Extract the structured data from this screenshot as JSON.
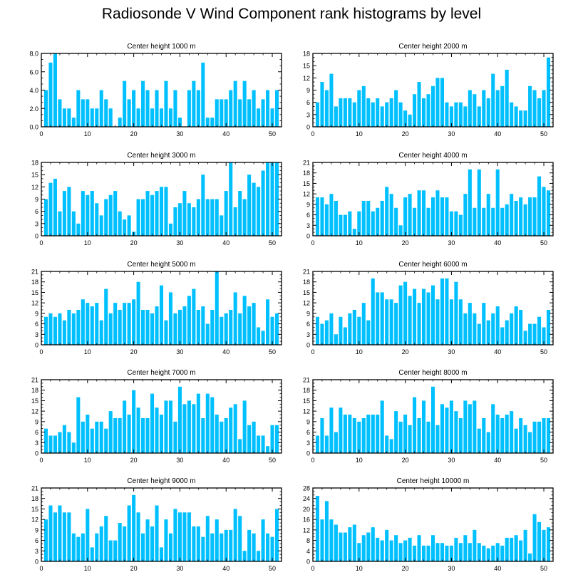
{
  "title": "Radiosonde V Wind Component rank histograms by level",
  "colors": {
    "bar": "#00c0ff",
    "axis": "#000000",
    "background": "#ffffff"
  },
  "chart_data": [
    {
      "type": "bar",
      "title": "Center height 1000 m",
      "xlim": [
        0,
        52
      ],
      "xticks": [
        0,
        10,
        20,
        30,
        40,
        50
      ],
      "ylim": [
        0,
        8
      ],
      "yticks": [
        "0.0",
        "2.0",
        "4.0",
        "6.0",
        "8.0"
      ],
      "x": [
        1,
        2,
        3,
        4,
        5,
        6,
        7,
        8,
        9,
        10,
        11,
        12,
        13,
        14,
        15,
        16,
        17,
        18,
        19,
        20,
        21,
        22,
        23,
        24,
        25,
        26,
        27,
        28,
        29,
        30,
        31,
        32,
        33,
        34,
        35,
        36,
        37,
        38,
        39,
        40,
        41,
        42,
        43,
        44,
        45,
        46,
        47,
        48,
        49,
        50,
        51
      ],
      "values": [
        4,
        7,
        8,
        3,
        2,
        2,
        1,
        4,
        3,
        3,
        2,
        2,
        4,
        3,
        2,
        0,
        1,
        5,
        3,
        4,
        2,
        5,
        4,
        2,
        4,
        2,
        5,
        2,
        4,
        1,
        0,
        4,
        5,
        4,
        7,
        1,
        1,
        3,
        3,
        3,
        4,
        5,
        3,
        5,
        3,
        4,
        2,
        3,
        4,
        2,
        4
      ]
    },
    {
      "type": "bar",
      "title": "Center height 2000 m",
      "xlim": [
        0,
        52
      ],
      "xticks": [
        0,
        10,
        20,
        30,
        40,
        50
      ],
      "ylim": [
        0,
        18
      ],
      "yticks": [
        "0",
        "3",
        "6",
        "9",
        "12",
        "15",
        "18"
      ],
      "x": [
        1,
        2,
        3,
        4,
        5,
        6,
        7,
        8,
        9,
        10,
        11,
        12,
        13,
        14,
        15,
        16,
        17,
        18,
        19,
        20,
        21,
        22,
        23,
        24,
        25,
        26,
        27,
        28,
        29,
        30,
        31,
        32,
        33,
        34,
        35,
        36,
        37,
        38,
        39,
        40,
        41,
        42,
        43,
        44,
        45,
        46,
        47,
        48,
        49,
        50,
        51
      ],
      "values": [
        6,
        11,
        9,
        13,
        5,
        7,
        7,
        7,
        6,
        9,
        10,
        7,
        6,
        7,
        5,
        6,
        7,
        9,
        6,
        4,
        3,
        8,
        11,
        7,
        8,
        10,
        12,
        12,
        6,
        5,
        6,
        6,
        5,
        9,
        8,
        5,
        9,
        7,
        13,
        9,
        10,
        14,
        6,
        5,
        4,
        4,
        10,
        9,
        7,
        9,
        17
      ]
    },
    {
      "type": "bar",
      "title": "Center height 3000 m",
      "xlim": [
        0,
        52
      ],
      "xticks": [
        0,
        10,
        20,
        30,
        40,
        50
      ],
      "ylim": [
        0,
        18
      ],
      "yticks": [
        "0",
        "3",
        "6",
        "9",
        "12",
        "15",
        "18"
      ],
      "x": [
        1,
        2,
        3,
        4,
        5,
        6,
        7,
        8,
        9,
        10,
        11,
        12,
        13,
        14,
        15,
        16,
        17,
        18,
        19,
        20,
        21,
        22,
        23,
        24,
        25,
        26,
        27,
        28,
        29,
        30,
        31,
        32,
        33,
        34,
        35,
        36,
        37,
        38,
        39,
        40,
        41,
        42,
        43,
        44,
        45,
        46,
        47,
        48,
        49,
        50,
        51
      ],
      "values": [
        9,
        13,
        14,
        6,
        11,
        12,
        6,
        3,
        11,
        10,
        11,
        8,
        5,
        9,
        10,
        11,
        6,
        4,
        5,
        1,
        9,
        9,
        11,
        10,
        11,
        12,
        12,
        3,
        7,
        8,
        11,
        8,
        7,
        9,
        15,
        9,
        9,
        9,
        5,
        11,
        18,
        7,
        11,
        9,
        15,
        13,
        12,
        16,
        18,
        18,
        18
      ]
    },
    {
      "type": "bar",
      "title": "Center height 4000 m",
      "xlim": [
        0,
        52
      ],
      "xticks": [
        0,
        10,
        20,
        30,
        40,
        50
      ],
      "ylim": [
        0,
        21
      ],
      "yticks": [
        "0",
        "3",
        "6",
        "9",
        "12",
        "15",
        "18",
        "21"
      ],
      "x": [
        1,
        2,
        3,
        4,
        5,
        6,
        7,
        8,
        9,
        10,
        11,
        12,
        13,
        14,
        15,
        16,
        17,
        18,
        19,
        20,
        21,
        22,
        23,
        24,
        25,
        26,
        27,
        28,
        29,
        30,
        31,
        32,
        33,
        34,
        35,
        36,
        37,
        38,
        39,
        40,
        41,
        42,
        43,
        44,
        45,
        46,
        47,
        48,
        49,
        50,
        51
      ],
      "values": [
        11,
        11,
        9,
        12,
        10,
        6,
        6,
        7,
        2,
        7,
        10,
        10,
        7,
        8,
        10,
        14,
        12,
        8,
        3,
        11,
        12,
        8,
        13,
        13,
        8,
        11,
        13,
        11,
        11,
        7,
        7,
        6,
        12,
        19,
        8,
        19,
        8,
        12,
        8,
        19,
        8,
        9,
        12,
        10,
        11,
        9,
        11,
        11,
        17,
        14,
        13
      ]
    },
    {
      "type": "bar",
      "title": "Center height 5000 m",
      "xlim": [
        0,
        52
      ],
      "xticks": [
        0,
        10,
        20,
        30,
        40,
        50
      ],
      "ylim": [
        0,
        21
      ],
      "yticks": [
        "0",
        "3",
        "6",
        "9",
        "12",
        "15",
        "18",
        "21"
      ],
      "x": [
        1,
        2,
        3,
        4,
        5,
        6,
        7,
        8,
        9,
        10,
        11,
        12,
        13,
        14,
        15,
        16,
        17,
        18,
        19,
        20,
        21,
        22,
        23,
        24,
        25,
        26,
        27,
        28,
        29,
        30,
        31,
        32,
        33,
        34,
        35,
        36,
        37,
        38,
        39,
        40,
        41,
        42,
        43,
        44,
        45,
        46,
        47,
        48,
        49,
        50,
        51
      ],
      "values": [
        8,
        9,
        8,
        9,
        7,
        10,
        9,
        10,
        13,
        12,
        11,
        12,
        7,
        16,
        9,
        12,
        10,
        12,
        12,
        13,
        18,
        10,
        10,
        9,
        11,
        17,
        7,
        15,
        9,
        10,
        11,
        14,
        16,
        10,
        11,
        6,
        10,
        21,
        8,
        9,
        10,
        15,
        9,
        14,
        11,
        12,
        5,
        4,
        13,
        8,
        9
      ]
    },
    {
      "type": "bar",
      "title": "Center height 6000 m",
      "xlim": [
        0,
        52
      ],
      "xticks": [
        0,
        10,
        20,
        30,
        40,
        50
      ],
      "ylim": [
        0,
        21
      ],
      "yticks": [
        "0",
        "3",
        "6",
        "9",
        "12",
        "15",
        "18",
        "21"
      ],
      "x": [
        1,
        2,
        3,
        4,
        5,
        6,
        7,
        8,
        9,
        10,
        11,
        12,
        13,
        14,
        15,
        16,
        17,
        18,
        19,
        20,
        21,
        22,
        23,
        24,
        25,
        26,
        27,
        28,
        29,
        30,
        31,
        32,
        33,
        34,
        35,
        36,
        37,
        38,
        39,
        40,
        41,
        42,
        43,
        44,
        45,
        46,
        47,
        48,
        49,
        50,
        51
      ],
      "values": [
        8,
        6,
        7,
        9,
        3,
        8,
        5,
        9,
        10,
        8,
        12,
        7,
        19,
        15,
        15,
        13,
        13,
        12,
        17,
        18,
        14,
        16,
        12,
        16,
        15,
        17,
        13,
        19,
        19,
        13,
        18,
        13,
        9,
        12,
        9,
        6,
        12,
        7,
        9,
        11,
        5,
        7,
        9,
        11,
        10,
        4,
        6,
        6,
        8,
        5,
        10
      ]
    },
    {
      "type": "bar",
      "title": "Center height 7000 m",
      "xlim": [
        0,
        52
      ],
      "xticks": [
        0,
        10,
        20,
        30,
        40,
        50
      ],
      "ylim": [
        0,
        21
      ],
      "yticks": [
        "0",
        "3",
        "6",
        "9",
        "12",
        "15",
        "18",
        "21"
      ],
      "x": [
        1,
        2,
        3,
        4,
        5,
        6,
        7,
        8,
        9,
        10,
        11,
        12,
        13,
        14,
        15,
        16,
        17,
        18,
        19,
        20,
        21,
        22,
        23,
        24,
        25,
        26,
        27,
        28,
        29,
        30,
        31,
        32,
        33,
        34,
        35,
        36,
        37,
        38,
        39,
        40,
        41,
        42,
        43,
        44,
        45,
        46,
        47,
        48,
        49,
        50,
        51
      ],
      "values": [
        7,
        5,
        5,
        6,
        8,
        6,
        3,
        16,
        9,
        11,
        7,
        9,
        9,
        7,
        12,
        10,
        10,
        15,
        11,
        18,
        13,
        10,
        10,
        17,
        13,
        11,
        15,
        15,
        9,
        19,
        14,
        15,
        14,
        17,
        10,
        17,
        16,
        11,
        9,
        10,
        13,
        14,
        4,
        15,
        8,
        9,
        5,
        5,
        2,
        8,
        8
      ]
    },
    {
      "type": "bar",
      "title": "Center height 8000 m",
      "xlim": [
        0,
        52
      ],
      "xticks": [
        0,
        10,
        20,
        30,
        40,
        50
      ],
      "ylim": [
        0,
        21
      ],
      "yticks": [
        "0",
        "3",
        "6",
        "9",
        "12",
        "15",
        "18",
        "21"
      ],
      "x": [
        1,
        2,
        3,
        4,
        5,
        6,
        7,
        8,
        9,
        10,
        11,
        12,
        13,
        14,
        15,
        16,
        17,
        18,
        19,
        20,
        21,
        22,
        23,
        24,
        25,
        26,
        27,
        28,
        29,
        30,
        31,
        32,
        33,
        34,
        35,
        36,
        37,
        38,
        39,
        40,
        41,
        42,
        43,
        44,
        45,
        46,
        47,
        48,
        49,
        50,
        51
      ],
      "values": [
        5,
        10,
        5,
        13,
        6,
        13,
        11,
        11,
        10,
        9,
        10,
        11,
        11,
        11,
        15,
        5,
        4,
        12,
        9,
        11,
        8,
        16,
        10,
        15,
        9,
        19,
        8,
        14,
        13,
        15,
        12,
        10,
        15,
        14,
        15,
        7,
        10,
        6,
        14,
        11,
        10,
        11,
        12,
        7,
        10,
        8,
        6,
        9,
        9,
        10,
        10
      ]
    },
    {
      "type": "bar",
      "title": "Center height 9000 m",
      "xlim": [
        0,
        52
      ],
      "xticks": [
        0,
        10,
        20,
        30,
        40,
        50
      ],
      "ylim": [
        0,
        21
      ],
      "yticks": [
        "0",
        "3",
        "6",
        "9",
        "12",
        "15",
        "18",
        "21"
      ],
      "x": [
        1,
        2,
        3,
        4,
        5,
        6,
        7,
        8,
        9,
        10,
        11,
        12,
        13,
        14,
        15,
        16,
        17,
        18,
        19,
        20,
        21,
        22,
        23,
        24,
        25,
        26,
        27,
        28,
        29,
        30,
        31,
        32,
        33,
        34,
        35,
        36,
        37,
        38,
        39,
        40,
        41,
        42,
        43,
        44,
        45,
        46,
        47,
        48,
        49,
        50,
        51
      ],
      "values": [
        12,
        16,
        14,
        16,
        14,
        14,
        8,
        7,
        8,
        15,
        4,
        8,
        10,
        13,
        6,
        6,
        11,
        10,
        16,
        19,
        14,
        8,
        12,
        10,
        16,
        4,
        12,
        8,
        15,
        14,
        14,
        14,
        10,
        10,
        7,
        13,
        8,
        12,
        8,
        9,
        9,
        15,
        13,
        3,
        9,
        8,
        3,
        12,
        8,
        7,
        15
      ]
    },
    {
      "type": "bar",
      "title": "Center height 10000 m",
      "xlim": [
        0,
        52
      ],
      "xticks": [
        0,
        10,
        20,
        30,
        40,
        50
      ],
      "ylim": [
        0,
        28
      ],
      "yticks": [
        "0",
        "4",
        "8",
        "12",
        "16",
        "20",
        "24",
        "28"
      ],
      "x": [
        1,
        2,
        3,
        4,
        5,
        6,
        7,
        8,
        9,
        10,
        11,
        12,
        13,
        14,
        15,
        16,
        17,
        18,
        19,
        20,
        21,
        22,
        23,
        24,
        25,
        26,
        27,
        28,
        29,
        30,
        31,
        32,
        33,
        34,
        35,
        36,
        37,
        38,
        39,
        40,
        41,
        42,
        43,
        44,
        45,
        46,
        47,
        48,
        49,
        50,
        51
      ],
      "values": [
        25,
        16,
        23,
        16,
        14,
        11,
        11,
        13,
        14,
        7,
        10,
        11,
        13,
        9,
        8,
        12,
        8,
        10,
        7,
        8,
        9,
        6,
        10,
        6,
        6,
        10,
        7,
        7,
        6,
        6,
        9,
        7,
        10,
        7,
        12,
        7,
        6,
        5,
        6,
        7,
        6,
        9,
        9,
        10,
        8,
        12,
        3,
        18,
        15,
        12,
        13
      ]
    }
  ]
}
